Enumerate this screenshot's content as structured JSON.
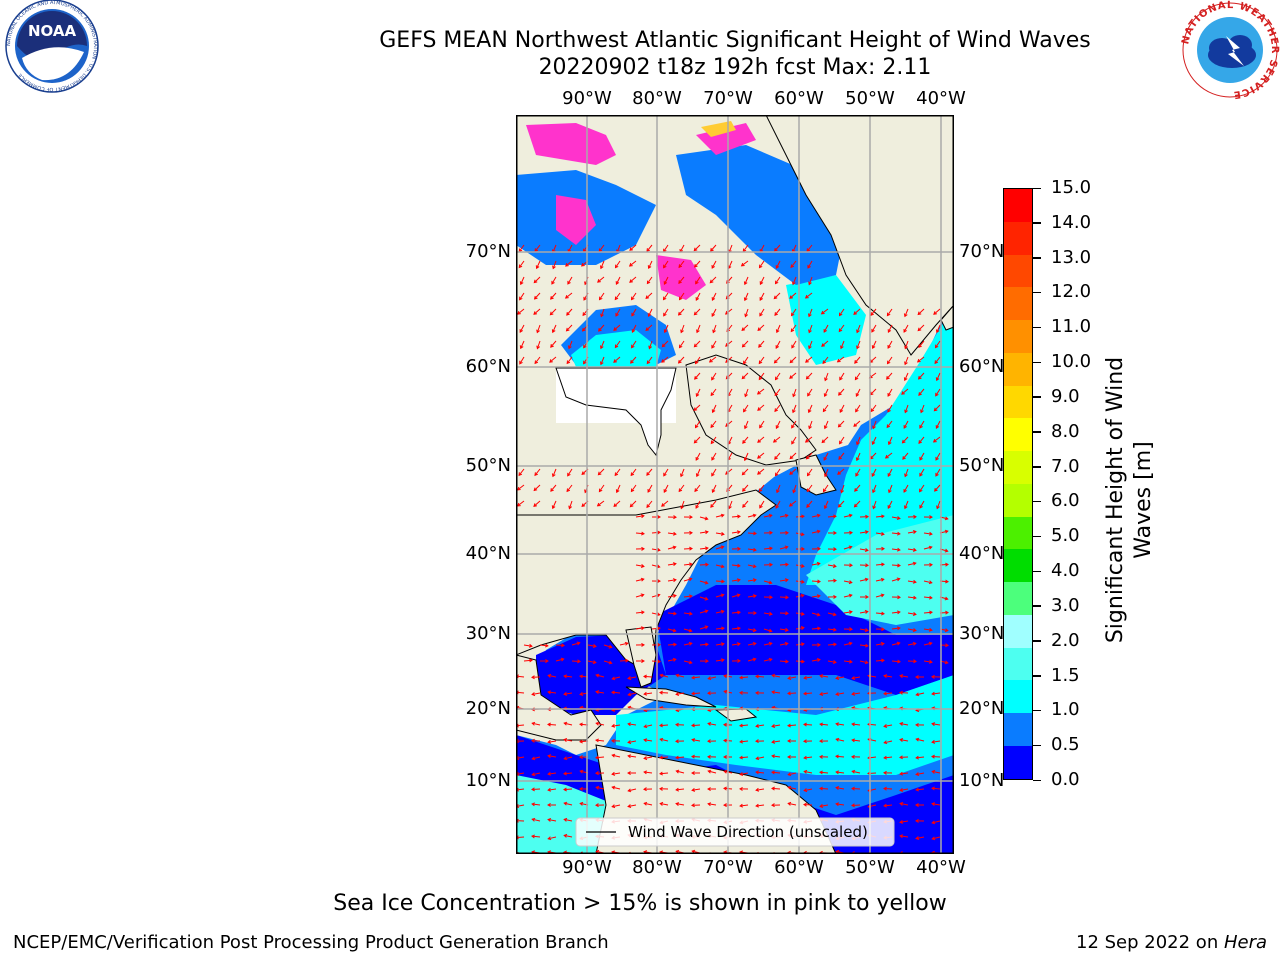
{
  "header": {
    "title_line1": "GEFS MEAN Northwest Atlantic Significant Height of Wind Waves",
    "title_line2": "20220902 t18z 192h fcst   Max: 2.11"
  },
  "logos": {
    "noaa_text": "NOAA",
    "noaa_ring_text": "NATIONAL OCEANIC AND ATMOSPHERIC ADMINISTRATION · U.S. DEPARTMENT OF COMMERCE",
    "nws_ring_text": "NATIONAL WEATHER SERVICE"
  },
  "map": {
    "lon_labels": [
      "90°W",
      "80°W",
      "70°W",
      "60°W",
      "50°W",
      "40°W"
    ],
    "lat_labels": [
      "70°N",
      "60°N",
      "50°N",
      "40°N",
      "30°N",
      "20°N",
      "10°N"
    ],
    "legend_label": "Wind Wave Direction (unscaled)",
    "colors": {
      "land": "#efeedd",
      "ocean_low": "#0000ff",
      "ocean_mid": "#0a7cff",
      "ocean_high": "#00ffff",
      "ocean_top": "#4dfffb",
      "ice": "#ff33cc",
      "arrow": "#ff0000"
    }
  },
  "colorbar": {
    "label_line1": "Significant Height of Wind",
    "label_line2": "Waves [m]",
    "ticks": [
      "15.0",
      "14.0",
      "13.0",
      "12.0",
      "11.0",
      "10.0",
      "9.0",
      "8.0",
      "7.0",
      "6.0",
      "5.0",
      "4.0",
      "3.0",
      "2.0",
      "1.5",
      "1.0",
      "0.5",
      "0.0"
    ],
    "bands": [
      "#ff0000",
      "#ff2400",
      "#ff4800",
      "#ff6c00",
      "#ff9000",
      "#ffb400",
      "#ffd800",
      "#ffff00",
      "#d8ff00",
      "#b4ff00",
      "#4cf000",
      "#00dd00",
      "#4cff7c",
      "#a0ffff",
      "#4dfff0",
      "#00ffff",
      "#0a7cff",
      "#0000ff"
    ]
  },
  "footer": {
    "caption": "Sea Ice Concentration > 15% is shown in pink to yellow",
    "credit": "NCEP/EMC/Verification Post Processing Product Generation Branch",
    "date_prefix": "12 Sep 2022 on ",
    "machine": "Hera"
  }
}
